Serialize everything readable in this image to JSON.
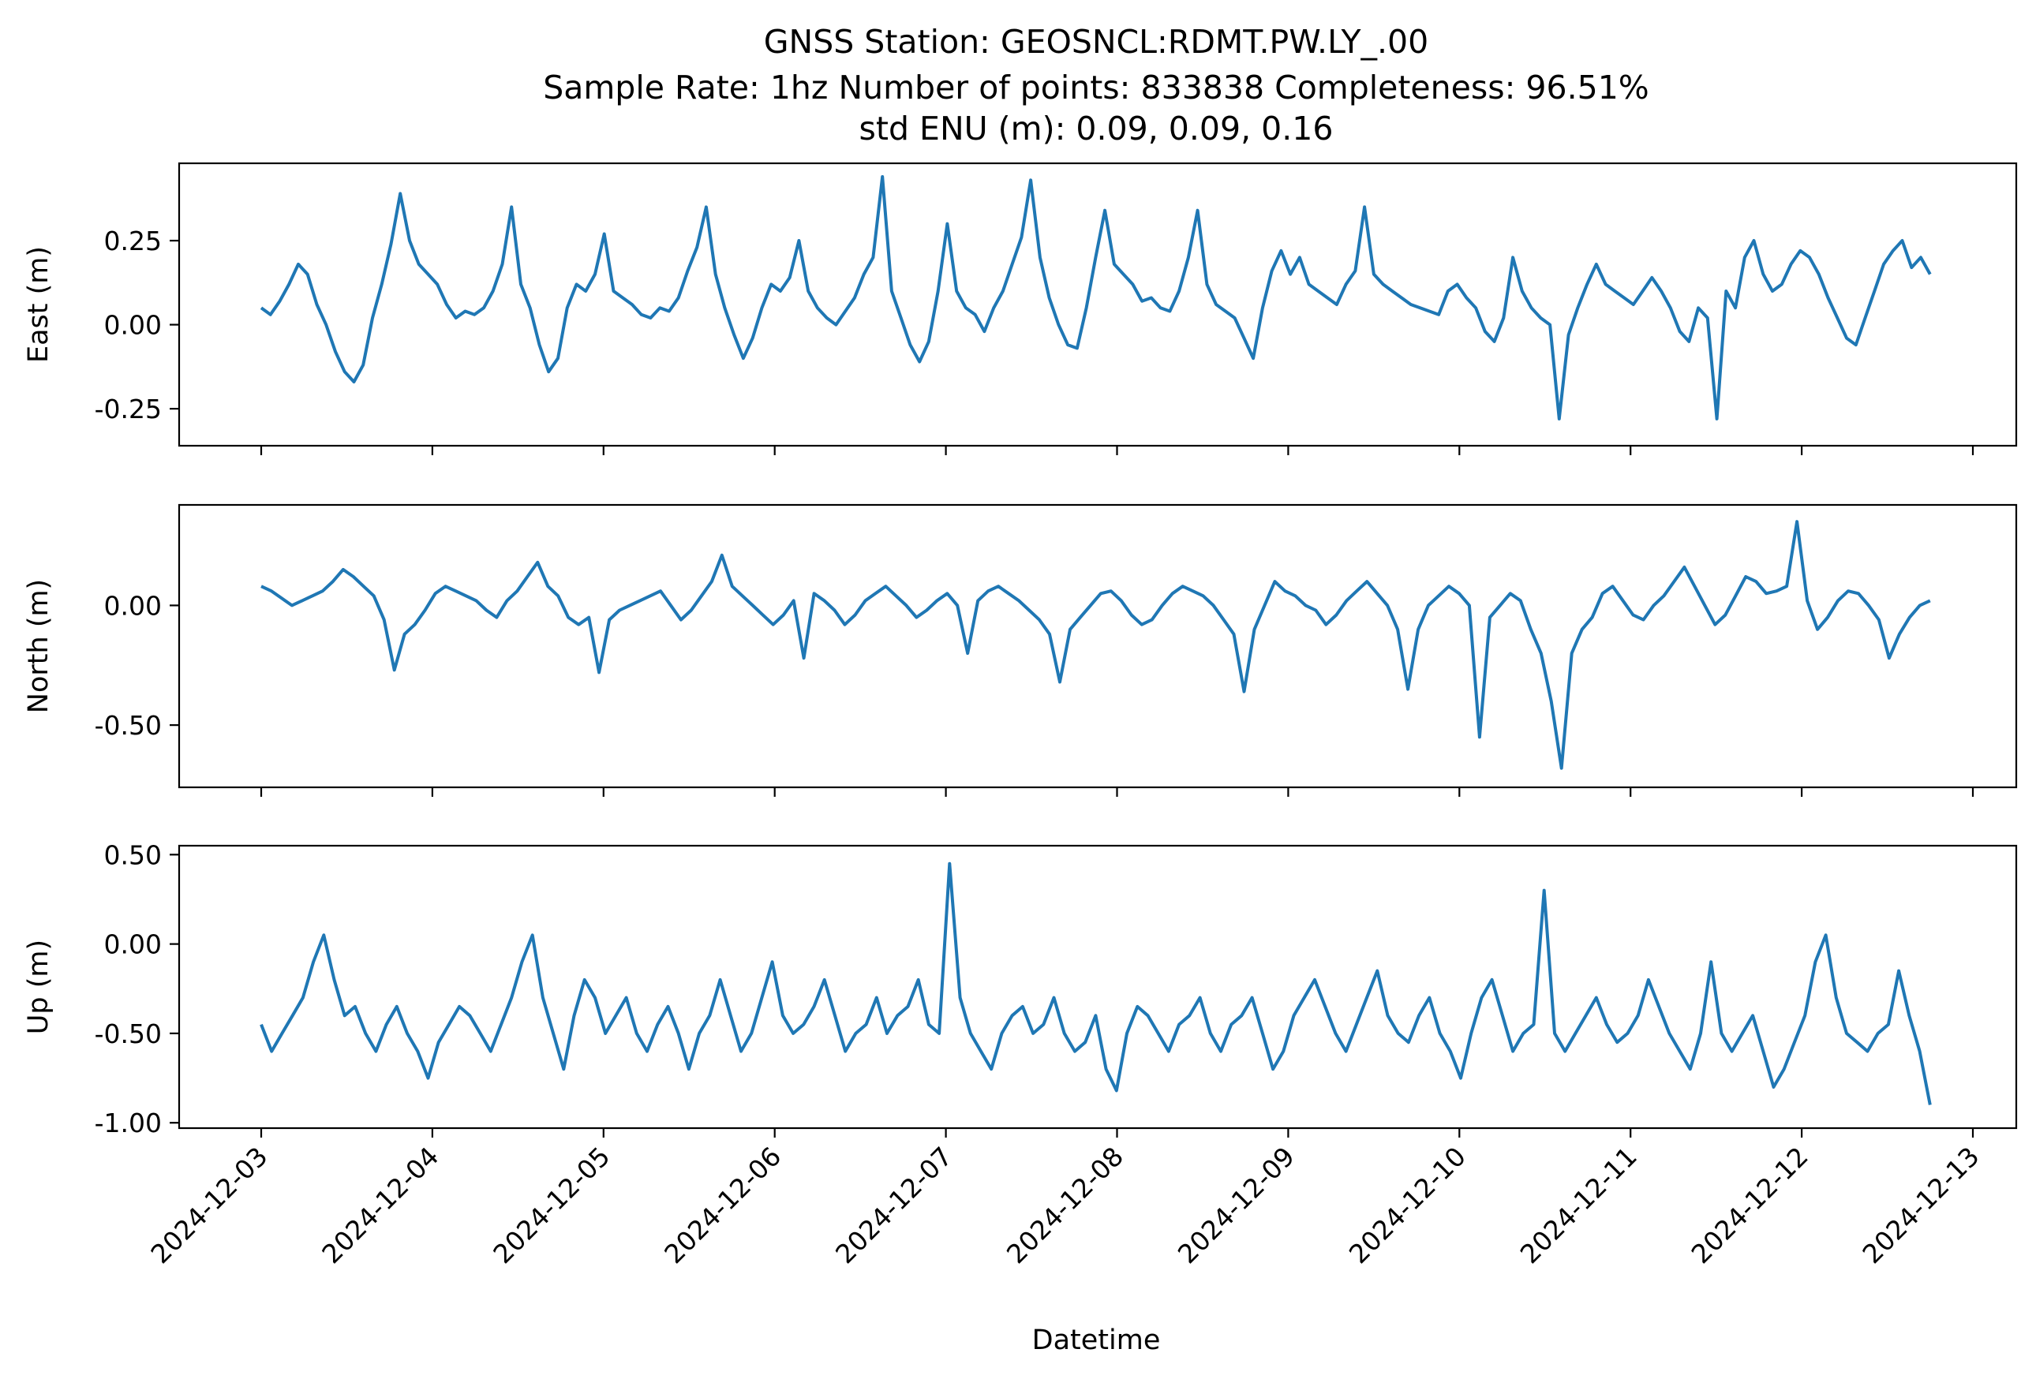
{
  "chart_data": {
    "type": "line",
    "title_lines": [
      "GNSS Station: GEOSNCL:RDMT.PW.LY_.00",
      "Sample Rate: 1hz   Number of points: 833838    Completeness:  96.51%",
      "std ENU (m):  0.09, 0.09, 0.16"
    ],
    "xlabel": "Datetime",
    "x_range": [
      "2024-12-03",
      "2024-12-13"
    ],
    "x_data_start": "2024-12-03",
    "x_data_end": "2024-12-12 18:00",
    "xtick_labels": [
      "2024-12-03",
      "2024-12-04",
      "2024-12-05",
      "2024-12-06",
      "2024-12-07",
      "2024-12-08",
      "2024-12-09",
      "2024-12-10",
      "2024-12-11",
      "2024-12-12",
      "2024-12-13"
    ],
    "grid": false,
    "line_color": "#1f77b4",
    "panels": [
      {
        "ylabel": "East (m)",
        "ylim": [
          -0.36,
          0.48
        ],
        "yticks": [
          -0.25,
          0.0,
          0.25
        ],
        "ytick_labels": [
          "-0.25",
          "0.00",
          "0.25"
        ],
        "values": [
          0.05,
          0.03,
          0.07,
          0.12,
          0.18,
          0.15,
          0.06,
          0.0,
          -0.08,
          -0.14,
          -0.17,
          -0.12,
          0.02,
          0.12,
          0.24,
          0.39,
          0.25,
          0.18,
          0.15,
          0.12,
          0.06,
          0.02,
          0.04,
          0.03,
          0.05,
          0.1,
          0.18,
          0.35,
          0.12,
          0.05,
          -0.06,
          -0.14,
          -0.1,
          0.05,
          0.12,
          0.1,
          0.15,
          0.27,
          0.1,
          0.08,
          0.06,
          0.03,
          0.02,
          0.05,
          0.04,
          0.08,
          0.16,
          0.23,
          0.35,
          0.15,
          0.05,
          -0.03,
          -0.1,
          -0.04,
          0.05,
          0.12,
          0.1,
          0.14,
          0.25,
          0.1,
          0.05,
          0.02,
          0.0,
          0.04,
          0.08,
          0.15,
          0.2,
          0.44,
          0.1,
          0.02,
          -0.06,
          -0.11,
          -0.05,
          0.1,
          0.3,
          0.1,
          0.05,
          0.03,
          -0.02,
          0.05,
          0.1,
          0.18,
          0.26,
          0.43,
          0.2,
          0.08,
          0.0,
          -0.06,
          -0.07,
          0.05,
          0.2,
          0.34,
          0.18,
          0.15,
          0.12,
          0.07,
          0.08,
          0.05,
          0.04,
          0.1,
          0.2,
          0.34,
          0.12,
          0.06,
          0.04,
          0.02,
          -0.04,
          -0.1,
          0.05,
          0.16,
          0.22,
          0.15,
          0.2,
          0.12,
          0.1,
          0.08,
          0.06,
          0.12,
          0.16,
          0.35,
          0.15,
          0.12,
          0.1,
          0.08,
          0.06,
          0.05,
          0.04,
          0.03,
          0.1,
          0.12,
          0.08,
          0.05,
          -0.02,
          -0.05,
          0.02,
          0.2,
          0.1,
          0.05,
          0.02,
          0.0,
          -0.28,
          -0.03,
          0.05,
          0.12,
          0.18,
          0.12,
          0.1,
          0.08,
          0.06,
          0.1,
          0.14,
          0.1,
          0.05,
          -0.02,
          -0.05,
          0.05,
          0.02,
          -0.28,
          0.1,
          0.05,
          0.2,
          0.25,
          0.15,
          0.1,
          0.12,
          0.18,
          0.22,
          0.2,
          0.15,
          0.08,
          0.02,
          -0.04,
          -0.06,
          0.02,
          0.1,
          0.18,
          0.22,
          0.25,
          0.17,
          0.2,
          0.15
        ]
      },
      {
        "ylabel": "North (m)",
        "ylim": [
          -0.76,
          0.42
        ],
        "yticks": [
          -0.5,
          0.0
        ],
        "ytick_labels": [
          "-0.50",
          "0.00"
        ],
        "values": [
          0.08,
          0.06,
          0.03,
          0.0,
          0.02,
          0.04,
          0.06,
          0.1,
          0.15,
          0.12,
          0.08,
          0.04,
          -0.06,
          -0.27,
          -0.12,
          -0.08,
          -0.02,
          0.05,
          0.08,
          0.06,
          0.04,
          0.02,
          -0.02,
          -0.05,
          0.02,
          0.06,
          0.12,
          0.18,
          0.08,
          0.04,
          -0.05,
          -0.08,
          -0.05,
          -0.28,
          -0.06,
          -0.02,
          0.0,
          0.02,
          0.04,
          0.06,
          0.0,
          -0.06,
          -0.02,
          0.04,
          0.1,
          0.21,
          0.08,
          0.04,
          0.0,
          -0.04,
          -0.08,
          -0.04,
          0.02,
          -0.22,
          0.05,
          0.02,
          -0.02,
          -0.08,
          -0.04,
          0.02,
          0.05,
          0.08,
          0.04,
          0.0,
          -0.05,
          -0.02,
          0.02,
          0.05,
          0.0,
          -0.2,
          0.02,
          0.06,
          0.08,
          0.05,
          0.02,
          -0.02,
          -0.06,
          -0.12,
          -0.32,
          -0.1,
          -0.05,
          0.0,
          0.05,
          0.06,
          0.02,
          -0.04,
          -0.08,
          -0.06,
          0.0,
          0.05,
          0.08,
          0.06,
          0.04,
          0.0,
          -0.06,
          -0.12,
          -0.36,
          -0.1,
          0.0,
          0.1,
          0.06,
          0.04,
          0.0,
          -0.02,
          -0.08,
          -0.04,
          0.02,
          0.06,
          0.1,
          0.05,
          0.0,
          -0.1,
          -0.35,
          -0.1,
          0.0,
          0.04,
          0.08,
          0.05,
          0.0,
          -0.55,
          -0.05,
          0.0,
          0.05,
          0.02,
          -0.1,
          -0.2,
          -0.4,
          -0.68,
          -0.2,
          -0.1,
          -0.05,
          0.05,
          0.08,
          0.02,
          -0.04,
          -0.06,
          0.0,
          0.04,
          0.1,
          0.16,
          0.08,
          0.0,
          -0.08,
          -0.04,
          0.04,
          0.12,
          0.1,
          0.05,
          0.06,
          0.08,
          0.35,
          0.02,
          -0.1,
          -0.05,
          0.02,
          0.06,
          0.05,
          0.0,
          -0.06,
          -0.22,
          -0.12,
          -0.05,
          0.0,
          0.02
        ]
      },
      {
        "ylabel": "Up (m)",
        "ylim": [
          -1.03,
          0.55
        ],
        "yticks": [
          -1.0,
          -0.5,
          0.0,
          0.5
        ],
        "ytick_labels": [
          "-1.00",
          "-0.50",
          "0.00",
          "0.50"
        ],
        "values": [
          -0.45,
          -0.6,
          -0.5,
          -0.4,
          -0.3,
          -0.1,
          0.05,
          -0.2,
          -0.4,
          -0.35,
          -0.5,
          -0.6,
          -0.45,
          -0.35,
          -0.5,
          -0.6,
          -0.75,
          -0.55,
          -0.45,
          -0.35,
          -0.4,
          -0.5,
          -0.6,
          -0.45,
          -0.3,
          -0.1,
          0.05,
          -0.3,
          -0.5,
          -0.7,
          -0.4,
          -0.2,
          -0.3,
          -0.5,
          -0.4,
          -0.3,
          -0.5,
          -0.6,
          -0.45,
          -0.35,
          -0.5,
          -0.7,
          -0.5,
          -0.4,
          -0.2,
          -0.4,
          -0.6,
          -0.5,
          -0.3,
          -0.1,
          -0.4,
          -0.5,
          -0.45,
          -0.35,
          -0.2,
          -0.4,
          -0.6,
          -0.5,
          -0.45,
          -0.3,
          -0.5,
          -0.4,
          -0.35,
          -0.2,
          -0.45,
          -0.5,
          0.45,
          -0.3,
          -0.5,
          -0.6,
          -0.7,
          -0.5,
          -0.4,
          -0.35,
          -0.5,
          -0.45,
          -0.3,
          -0.5,
          -0.6,
          -0.55,
          -0.4,
          -0.7,
          -0.82,
          -0.5,
          -0.35,
          -0.4,
          -0.5,
          -0.6,
          -0.45,
          -0.4,
          -0.3,
          -0.5,
          -0.6,
          -0.45,
          -0.4,
          -0.3,
          -0.5,
          -0.7,
          -0.6,
          -0.4,
          -0.3,
          -0.2,
          -0.35,
          -0.5,
          -0.6,
          -0.45,
          -0.3,
          -0.15,
          -0.4,
          -0.5,
          -0.55,
          -0.4,
          -0.3,
          -0.5,
          -0.6,
          -0.75,
          -0.5,
          -0.3,
          -0.2,
          -0.4,
          -0.6,
          -0.5,
          -0.45,
          0.3,
          -0.5,
          -0.6,
          -0.5,
          -0.4,
          -0.3,
          -0.45,
          -0.55,
          -0.5,
          -0.4,
          -0.2,
          -0.35,
          -0.5,
          -0.6,
          -0.7,
          -0.5,
          -0.1,
          -0.5,
          -0.6,
          -0.5,
          -0.4,
          -0.6,
          -0.8,
          -0.7,
          -0.55,
          -0.4,
          -0.1,
          0.05,
          -0.3,
          -0.5,
          -0.55,
          -0.6,
          -0.5,
          -0.45,
          -0.15,
          -0.4,
          -0.6,
          -0.9
        ]
      }
    ]
  }
}
